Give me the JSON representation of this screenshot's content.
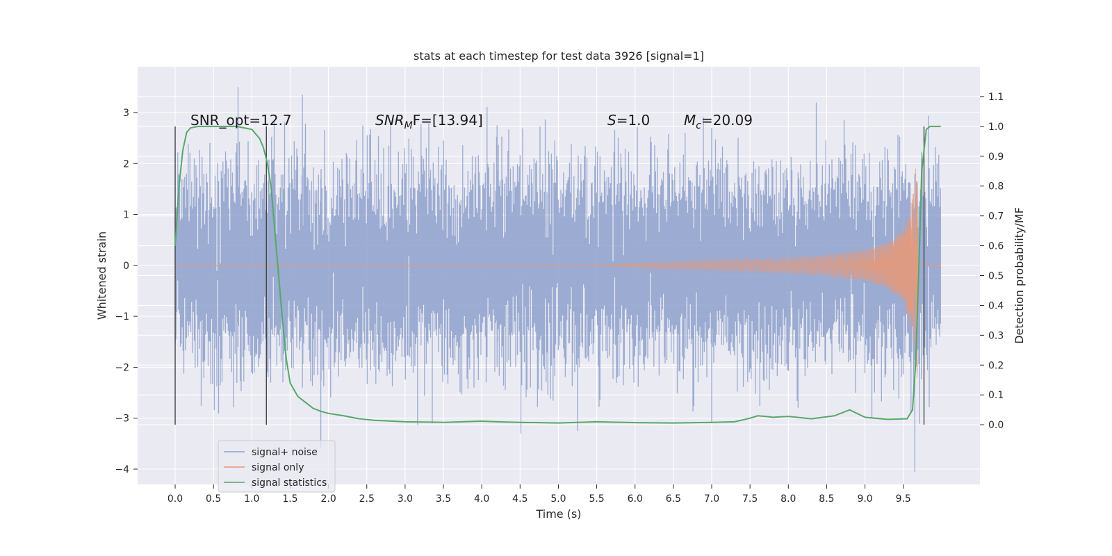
{
  "chart_data": {
    "type": "line",
    "title": "stats at each timestep for test data 3926 [signal=1]",
    "xlabel": "Time (s)",
    "ylabel_left": "Whitened strain",
    "ylabel_right": "Detection probability/MF",
    "xlim": [
      -0.49,
      10.5
    ],
    "ylim_left": [
      -4.3,
      3.9
    ],
    "ylim_right": [
      -0.2,
      1.2
    ],
    "x_ticks": [
      "0.0",
      "0.5",
      "1.0",
      "1.5",
      "2.0",
      "2.5",
      "3.0",
      "3.5",
      "4.0",
      "4.5",
      "5.0",
      "5.5",
      "6.0",
      "6.5",
      "7.0",
      "7.5",
      "8.0",
      "8.5",
      "9.0",
      "9.5"
    ],
    "left_ticks": [
      {
        "v": 3,
        "label": "3"
      },
      {
        "v": 2,
        "label": "2"
      },
      {
        "v": 1,
        "label": "1"
      },
      {
        "v": 0,
        "label": "0"
      },
      {
        "v": -1,
        "label": "−1"
      },
      {
        "v": -2,
        "label": "−2"
      },
      {
        "v": -3,
        "label": "−3"
      },
      {
        "v": -4,
        "label": "−4"
      }
    ],
    "right_ticks": [
      "1.1",
      "1.0",
      "0.9",
      "0.8",
      "0.7",
      "0.6",
      "0.5",
      "0.4",
      "0.3",
      "0.2",
      "0.1",
      "0.0"
    ],
    "annotations": {
      "snr_opt": "SNR_opt=12.7",
      "snr_mf_base": "SNR",
      "snr_mf_sub": "M",
      "snr_mf_rest": "F=[13.94]",
      "s_base": "S",
      "s_rest": "=1.0",
      "mc_base": "M",
      "mc_sub": "c",
      "mc_rest": "=20.09"
    },
    "vlines": [
      0.0,
      1.19,
      9.77
    ],
    "grid": true,
    "legend_position": "lower-left",
    "series": [
      {
        "name": "signal+ noise",
        "color": "#8da0cb",
        "kind": "noise_band",
        "x_range": [
          0.0,
          9.99
        ],
        "approx_envelope": {
          "typical_min": -1.7,
          "typical_max": 1.7,
          "peak_min": -4.05,
          "peak_max": 3.5
        }
      },
      {
        "name": "signal only",
        "color": "#e5997a",
        "kind": "chirp",
        "x_range": [
          0.0,
          9.99
        ],
        "envelope": [
          [
            0.0,
            0.0
          ],
          [
            5.5,
            0.0
          ],
          [
            6.0,
            0.05
          ],
          [
            7.0,
            0.1
          ],
          [
            8.0,
            0.15
          ],
          [
            8.5,
            0.2
          ],
          [
            9.0,
            0.3
          ],
          [
            9.3,
            0.45
          ],
          [
            9.5,
            0.7
          ],
          [
            9.6,
            1.2
          ],
          [
            9.65,
            1.7
          ],
          [
            9.68,
            2.2
          ],
          [
            9.7,
            0.0
          ],
          [
            9.99,
            0.0
          ]
        ]
      },
      {
        "name": "signal statistics",
        "color": "#55a868",
        "axis": "right",
        "x": [
          0.0,
          0.05,
          0.1,
          0.15,
          0.2,
          0.3,
          0.5,
          0.8,
          1.0,
          1.1,
          1.15,
          1.2,
          1.25,
          1.3,
          1.35,
          1.4,
          1.45,
          1.5,
          1.6,
          1.7,
          1.8,
          1.9,
          2.0,
          2.2,
          2.4,
          2.6,
          3.0,
          3.5,
          4.0,
          4.2,
          4.5,
          5.0,
          5.5,
          6.0,
          6.5,
          7.0,
          7.3,
          7.5,
          7.6,
          7.7,
          7.8,
          8.0,
          8.3,
          8.6,
          8.8,
          9.0,
          9.3,
          9.55,
          9.62,
          9.66,
          9.7,
          9.74,
          9.8,
          9.85,
          9.9,
          9.99
        ],
        "y": [
          0.6,
          0.8,
          0.92,
          0.98,
          0.995,
          1.0,
          1.0,
          1.0,
          0.99,
          0.96,
          0.93,
          0.88,
          0.8,
          0.65,
          0.5,
          0.35,
          0.22,
          0.14,
          0.095,
          0.075,
          0.055,
          0.045,
          0.038,
          0.03,
          0.02,
          0.015,
          0.01,
          0.008,
          0.012,
          0.01,
          0.008,
          0.006,
          0.01,
          0.007,
          0.006,
          0.008,
          0.01,
          0.022,
          0.03,
          0.028,
          0.025,
          0.028,
          0.02,
          0.03,
          0.05,
          0.025,
          0.018,
          0.02,
          0.05,
          0.2,
          0.5,
          0.85,
          0.99,
          1.0,
          1.0,
          1.0
        ]
      }
    ]
  }
}
